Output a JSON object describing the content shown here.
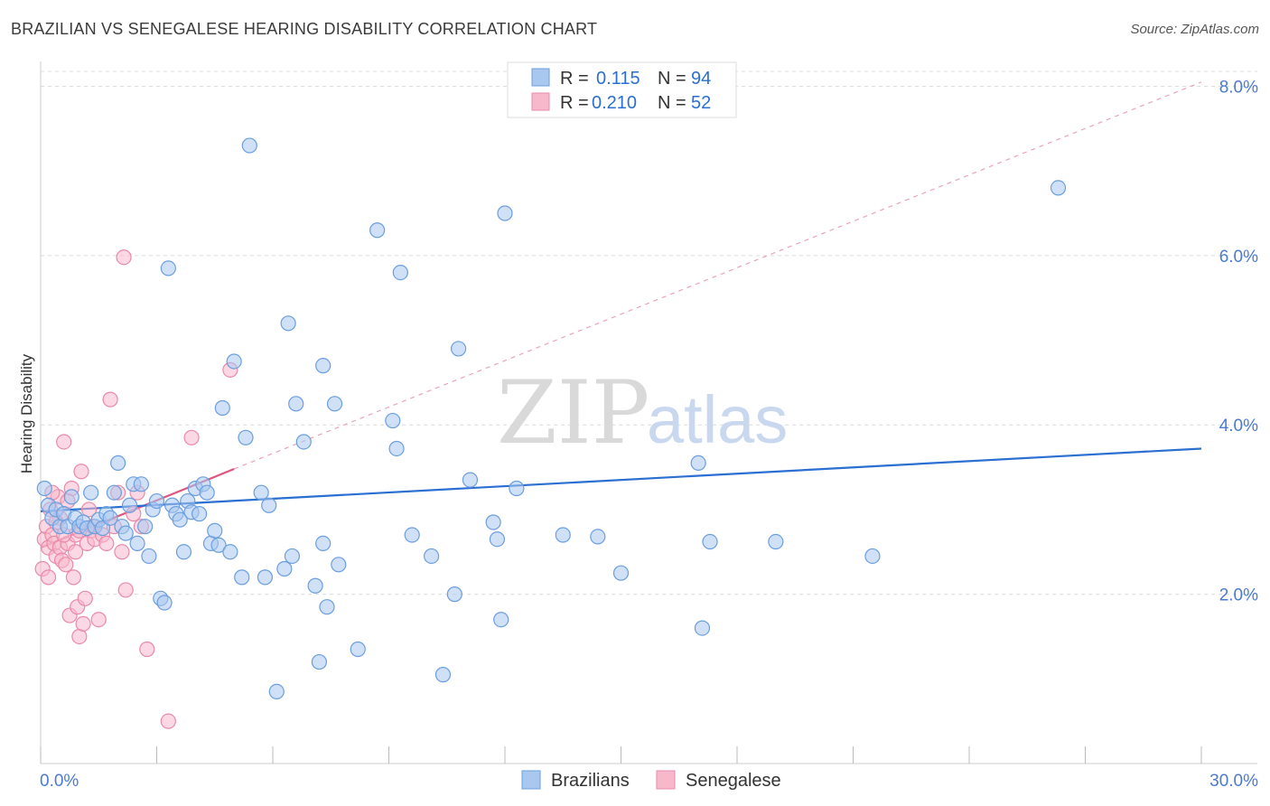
{
  "title": "BRAZILIAN VS SENEGALESE HEARING DISABILITY CORRELATION CHART",
  "source": "Source: ZipAtlas.com",
  "colors": {
    "blue_fill": "#a9c8f0",
    "blue_stroke": "#6b9ede",
    "blue_line": "#2a6fd1",
    "pink_fill": "#f7b8cc",
    "pink_stroke": "#e98aaa",
    "pink_line": "#e0567f",
    "tick_text": "#4a7bd0",
    "grid": "#dcdcdc"
  },
  "watermark": {
    "zip": "ZIP",
    "atlas": "atlas"
  },
  "legend_top": {
    "rows": [
      {
        "r_label": "R = ",
        "r_value": "0.115",
        "n_label": "N = ",
        "n_value": "94",
        "color": "blue"
      },
      {
        "r_label": "R = ",
        "r_value": "0.210",
        "n_label": "N = ",
        "n_value": "52",
        "color": "pink"
      }
    ]
  },
  "legend_bottom": [
    {
      "label": "Brazilians",
      "color": "blue"
    },
    {
      "label": "Senegalese",
      "color": "pink"
    }
  ],
  "chart_data": {
    "type": "scatter",
    "title": "BRAZILIAN VS SENEGALESE HEARING DISABILITY CORRELATION CHART",
    "xlabel": "",
    "ylabel": "Hearing Disability",
    "xlim": [
      0,
      30
    ],
    "ylim": [
      0,
      8.4
    ],
    "x_tick_labels": [
      {
        "value": 0,
        "label": "0.0%"
      },
      {
        "value": 30,
        "label": "30.0%"
      }
    ],
    "y_tick_labels": [
      {
        "value": 2,
        "label": "2.0%"
      },
      {
        "value": 4,
        "label": "4.0%"
      },
      {
        "value": 6,
        "label": "6.0%"
      },
      {
        "value": 8,
        "label": "8.0%"
      }
    ],
    "grid": true,
    "legend_position": "top-center",
    "series": [
      {
        "name": "Brazilians",
        "r": 0.115,
        "n": 94,
        "trend": {
          "x": [
            0,
            30
          ],
          "y": [
            2.98,
            3.72
          ]
        },
        "points": [
          [
            0.1,
            3.25
          ],
          [
            0.2,
            3.05
          ],
          [
            0.3,
            2.9
          ],
          [
            0.4,
            3.0
          ],
          [
            0.5,
            2.8
          ],
          [
            0.6,
            2.95
          ],
          [
            0.7,
            2.8
          ],
          [
            0.8,
            3.15
          ],
          [
            0.9,
            2.9
          ],
          [
            1.0,
            2.8
          ],
          [
            1.1,
            2.85
          ],
          [
            1.2,
            2.78
          ],
          [
            1.3,
            3.2
          ],
          [
            1.4,
            2.8
          ],
          [
            1.5,
            2.88
          ],
          [
            1.6,
            2.78
          ],
          [
            1.7,
            2.95
          ],
          [
            1.8,
            2.9
          ],
          [
            1.9,
            3.2
          ],
          [
            2.0,
            3.55
          ],
          [
            2.1,
            2.8
          ],
          [
            2.2,
            2.72
          ],
          [
            2.3,
            3.05
          ],
          [
            2.4,
            3.3
          ],
          [
            2.5,
            2.6
          ],
          [
            2.6,
            3.3
          ],
          [
            2.7,
            2.8
          ],
          [
            2.8,
            2.45
          ],
          [
            2.9,
            3.0
          ],
          [
            3.0,
            3.1
          ],
          [
            3.1,
            1.95
          ],
          [
            3.2,
            1.9
          ],
          [
            3.3,
            5.85
          ],
          [
            3.4,
            3.05
          ],
          [
            3.5,
            2.95
          ],
          [
            3.6,
            2.88
          ],
          [
            3.7,
            2.5
          ],
          [
            3.8,
            3.1
          ],
          [
            3.9,
            2.97
          ],
          [
            4.0,
            3.25
          ],
          [
            4.1,
            2.95
          ],
          [
            4.2,
            3.3
          ],
          [
            4.3,
            3.2
          ],
          [
            4.4,
            2.6
          ],
          [
            4.5,
            2.75
          ],
          [
            4.6,
            2.58
          ],
          [
            4.7,
            4.2
          ],
          [
            4.9,
            2.5
          ],
          [
            5.0,
            4.75
          ],
          [
            5.2,
            2.2
          ],
          [
            5.3,
            3.85
          ],
          [
            5.4,
            7.3
          ],
          [
            5.7,
            3.2
          ],
          [
            5.8,
            2.2
          ],
          [
            5.9,
            3.05
          ],
          [
            6.1,
            0.85
          ],
          [
            6.3,
            2.3
          ],
          [
            6.4,
            5.2
          ],
          [
            6.5,
            2.45
          ],
          [
            6.6,
            4.25
          ],
          [
            6.8,
            3.8
          ],
          [
            7.1,
            2.1
          ],
          [
            7.2,
            1.2
          ],
          [
            7.3,
            2.6
          ],
          [
            7.3,
            4.7
          ],
          [
            7.4,
            1.85
          ],
          [
            7.6,
            4.25
          ],
          [
            7.7,
            2.35
          ],
          [
            8.2,
            1.35
          ],
          [
            8.7,
            6.3
          ],
          [
            9.1,
            4.05
          ],
          [
            9.2,
            3.72
          ],
          [
            9.3,
            5.8
          ],
          [
            9.6,
            2.7
          ],
          [
            10.1,
            2.45
          ],
          [
            10.4,
            1.05
          ],
          [
            10.7,
            2.0
          ],
          [
            10.8,
            4.9
          ],
          [
            11.1,
            3.35
          ],
          [
            11.7,
            2.85
          ],
          [
            11.8,
            2.65
          ],
          [
            11.9,
            1.7
          ],
          [
            12.0,
            6.5
          ],
          [
            12.3,
            3.25
          ],
          [
            13.5,
            2.7
          ],
          [
            14.4,
            2.68
          ],
          [
            15.0,
            2.25
          ],
          [
            17.0,
            3.55
          ],
          [
            17.1,
            1.6
          ],
          [
            17.3,
            2.62
          ],
          [
            19.0,
            2.62
          ],
          [
            21.5,
            2.45
          ],
          [
            26.3,
            6.8
          ]
        ]
      },
      {
        "name": "Senegalese",
        "r": 0.21,
        "n": 52,
        "trend": {
          "x": [
            0,
            5.0
          ],
          "y": [
            2.55,
            3.48
          ]
        },
        "trend_dashed": {
          "x": [
            5.0,
            30.0
          ],
          "y": [
            3.48,
            8.05
          ]
        },
        "points": [
          [
            0.05,
            2.3
          ],
          [
            0.1,
            2.65
          ],
          [
            0.15,
            2.8
          ],
          [
            0.2,
            2.55
          ],
          [
            0.25,
            3.0
          ],
          [
            0.3,
            2.7
          ],
          [
            0.35,
            2.6
          ],
          [
            0.4,
            2.45
          ],
          [
            0.45,
            3.15
          ],
          [
            0.5,
            2.55
          ],
          [
            0.55,
            2.4
          ],
          [
            0.6,
            3.8
          ],
          [
            0.65,
            2.35
          ],
          [
            0.7,
            2.6
          ],
          [
            0.75,
            1.75
          ],
          [
            0.8,
            3.25
          ],
          [
            0.85,
            2.2
          ],
          [
            0.9,
            2.7
          ],
          [
            0.95,
            1.85
          ],
          [
            1.0,
            1.5
          ],
          [
            1.05,
            3.45
          ],
          [
            1.1,
            1.65
          ],
          [
            1.15,
            1.95
          ],
          [
            1.2,
            2.6
          ],
          [
            1.25,
            3.0
          ],
          [
            1.3,
            2.75
          ],
          [
            1.35,
            2.8
          ],
          [
            1.4,
            2.65
          ],
          [
            1.5,
            1.7
          ],
          [
            1.6,
            2.7
          ],
          [
            1.7,
            2.6
          ],
          [
            1.8,
            4.3
          ],
          [
            1.9,
            2.8
          ],
          [
            2.0,
            3.2
          ],
          [
            2.1,
            2.5
          ],
          [
            2.2,
            2.05
          ],
          [
            2.4,
            2.95
          ],
          [
            2.5,
            3.2
          ],
          [
            2.6,
            2.8
          ],
          [
            2.75,
            1.35
          ],
          [
            2.15,
            5.98
          ],
          [
            3.3,
            0.5
          ],
          [
            3.9,
            3.85
          ],
          [
            4.9,
            4.65
          ],
          [
            0.3,
            3.2
          ],
          [
            0.5,
            2.9
          ],
          [
            0.7,
            3.1
          ],
          [
            0.9,
            2.5
          ],
          [
            1.0,
            2.75
          ],
          [
            0.2,
            2.2
          ],
          [
            0.4,
            2.85
          ],
          [
            0.6,
            2.7
          ]
        ]
      }
    ]
  }
}
